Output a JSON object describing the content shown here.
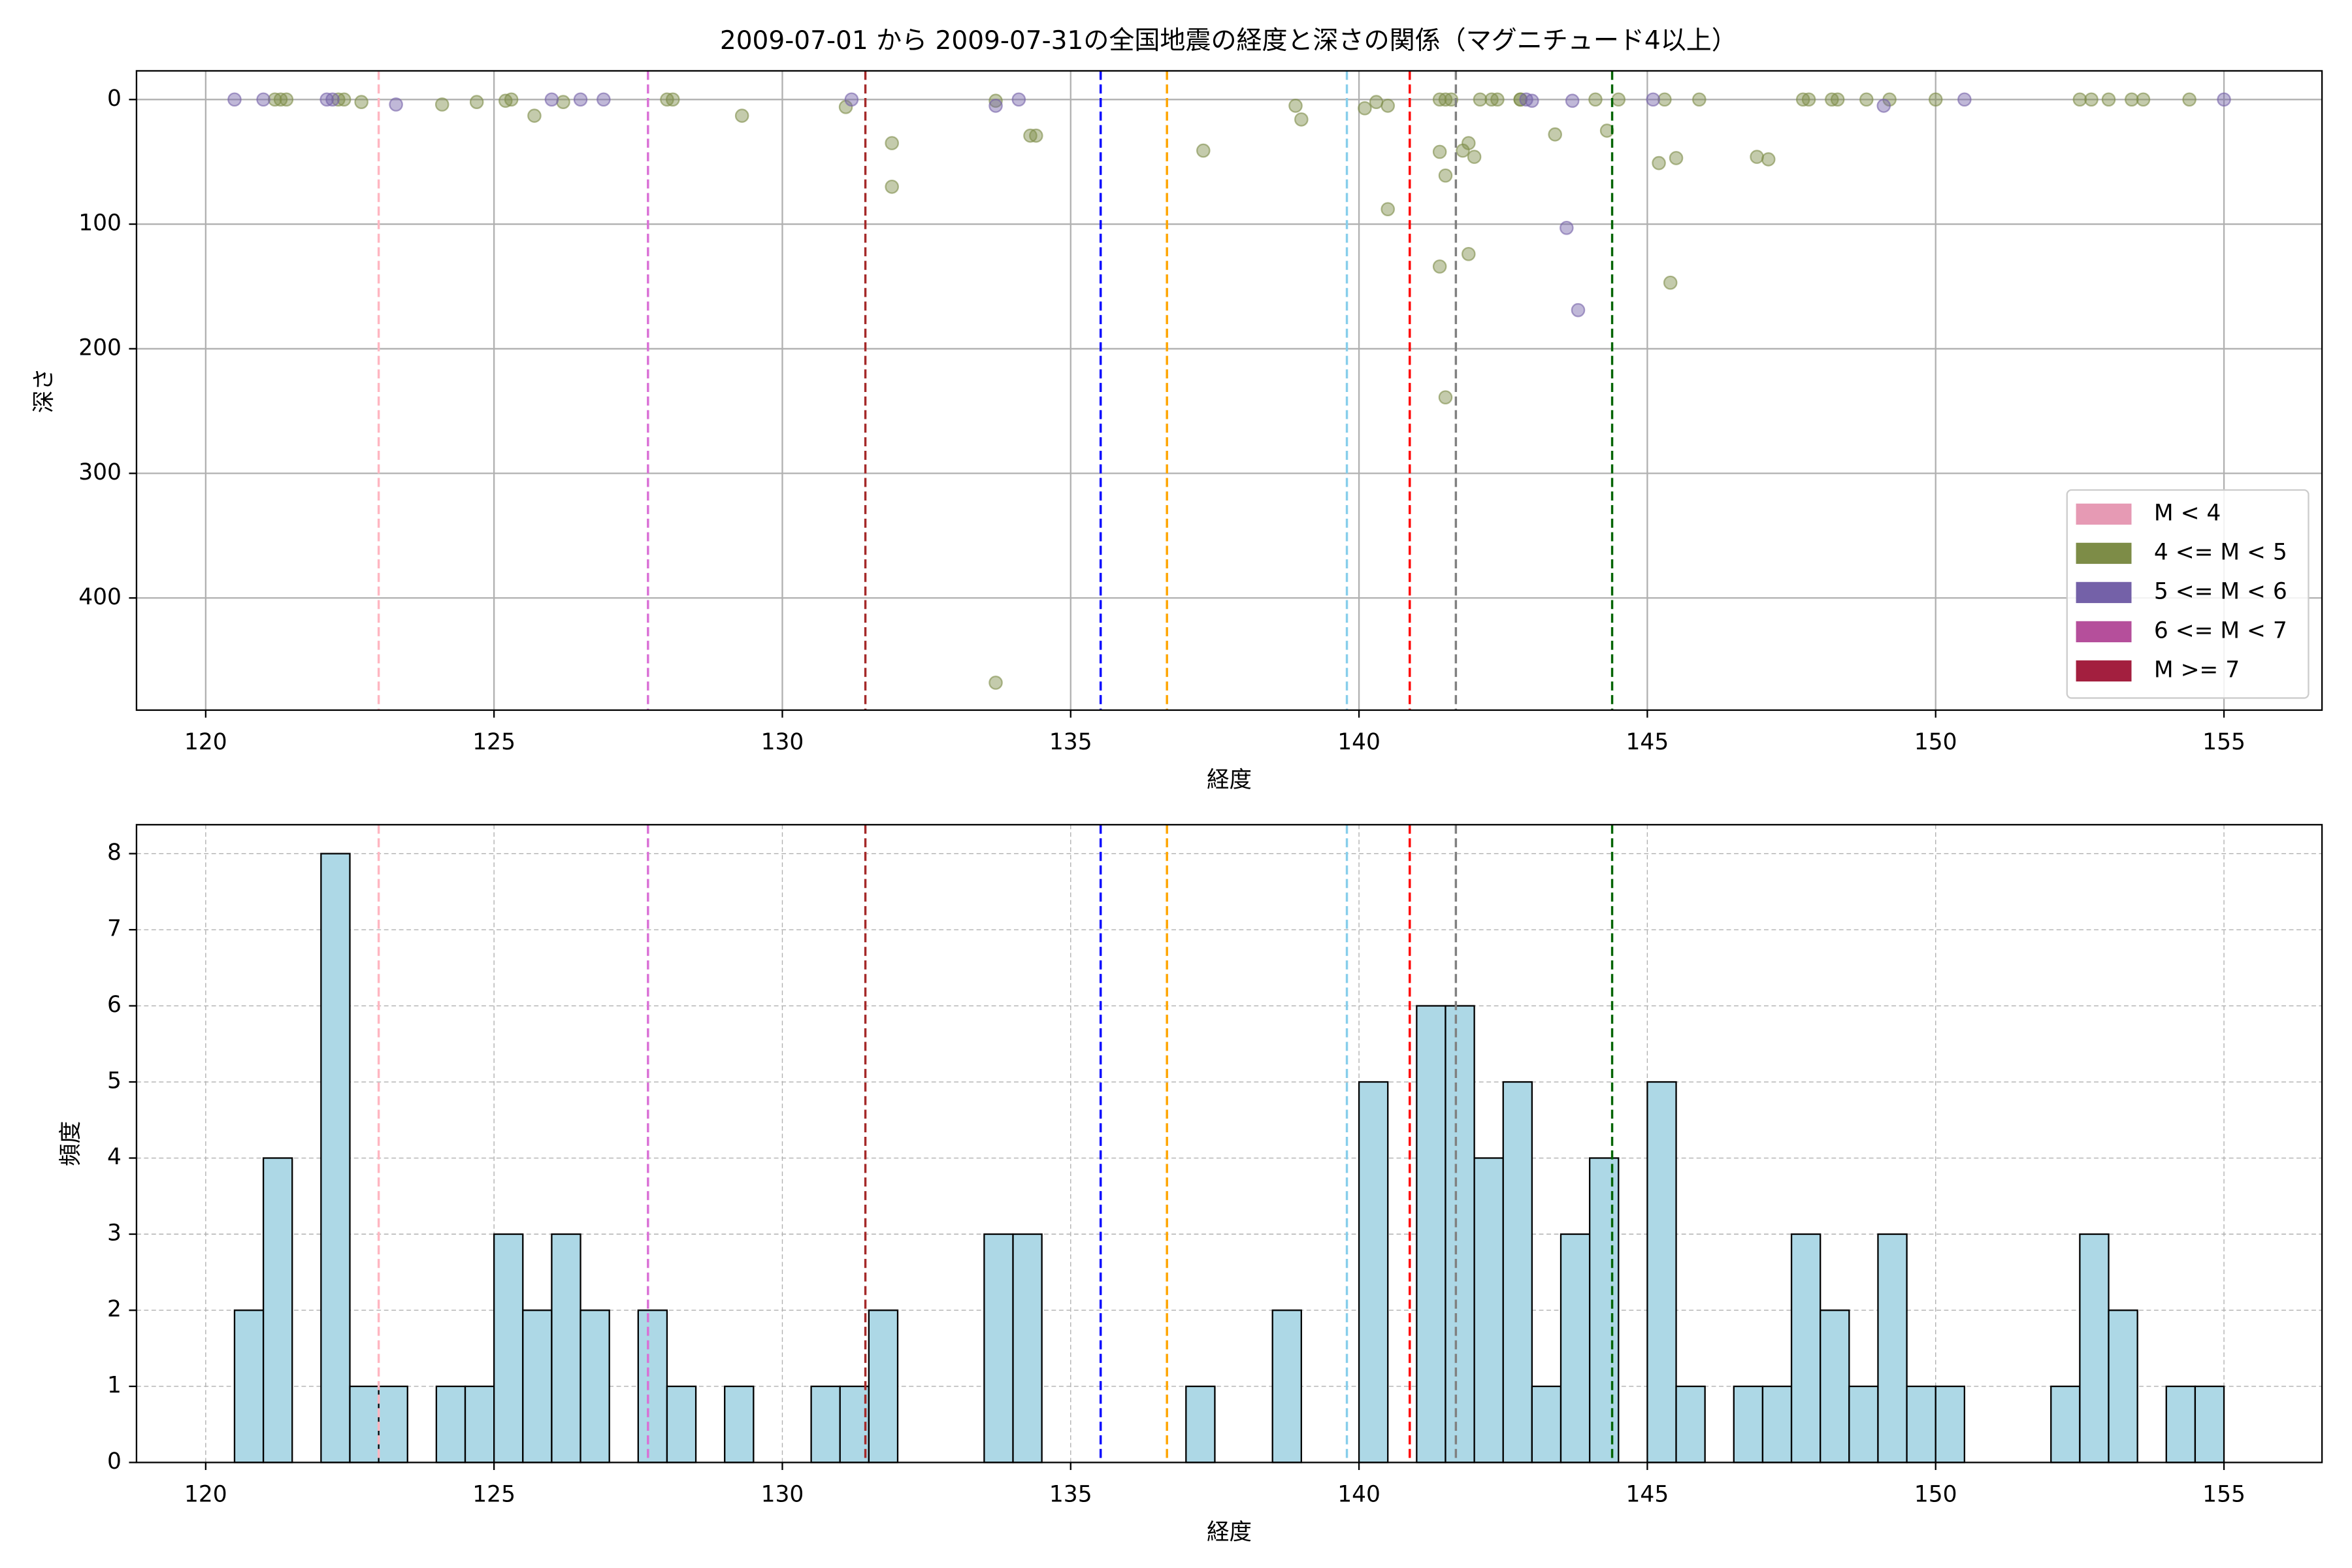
{
  "chart_data": [
    {
      "type": "scatter",
      "title": "2009-07-01 から 2009-07-31の全国地震の経度と深さの関係（マグニチュード4以上）",
      "xlabel": "経度",
      "ylabel": "深さ",
      "xlim": [
        118.8,
        156.7
      ],
      "ylim": [
        490,
        -23
      ],
      "xticks": [
        120,
        125,
        130,
        135,
        140,
        145,
        150,
        155
      ],
      "yticks": [
        0,
        100,
        200,
        300,
        400
      ],
      "grid": true,
      "grid_style": "solid",
      "legend": "lower right",
      "vlines": [
        {
          "x": 123.0,
          "color": "#ffb6c1"
        },
        {
          "x": 127.67,
          "color": "#da70d6"
        },
        {
          "x": 131.44,
          "color": "#a52a2a"
        },
        {
          "x": 135.52,
          "color": "#0000ff"
        },
        {
          "x": 136.67,
          "color": "#ffa500"
        },
        {
          "x": 139.79,
          "color": "#87ceeb"
        },
        {
          "x": 140.88,
          "color": "#ff0000"
        },
        {
          "x": 141.68,
          "color": "#808080"
        },
        {
          "x": 144.39,
          "color": "#006400"
        }
      ],
      "series": [
        {
          "name": "M < 4",
          "color": "#e69ab4",
          "x": [],
          "values": []
        },
        {
          "name": "4 <= M < 5",
          "color": "#7d8c47",
          "x": [
            121.2,
            121.3,
            121.4,
            122.3,
            122.4,
            122.7,
            124.1,
            124.7,
            125.2,
            125.3,
            125.7,
            126.2,
            128.0,
            128.1,
            129.3,
            131.1,
            131.9,
            131.9,
            133.7,
            134.3,
            134.4,
            137.3,
            138.9,
            139.0,
            140.1,
            140.3,
            140.5,
            140.5,
            141.4,
            141.5,
            141.6,
            141.4,
            141.5,
            141.4,
            141.5,
            141.8,
            141.9,
            142.0,
            141.9,
            142.1,
            142.3,
            142.4,
            142.8,
            142.8,
            143.4,
            144.1,
            144.3,
            144.5,
            145.2,
            145.3,
            145.5,
            145.4,
            145.9,
            146.9,
            147.1,
            147.7,
            147.8,
            148.2,
            148.3,
            148.8,
            149.2,
            150.0,
            152.5,
            152.7,
            153.0,
            153.4,
            153.6,
            154.4,
            133.7
          ],
          "values": [
            0,
            0,
            0,
            0,
            0,
            2,
            4,
            2,
            1,
            0,
            13,
            2,
            0,
            0,
            13,
            6,
            35,
            70,
            1,
            29,
            29,
            41,
            5,
            16,
            7,
            2,
            5,
            88,
            0,
            0,
            0,
            42,
            61,
            134,
            239,
            41,
            35,
            46,
            124,
            0,
            0,
            0,
            0,
            0,
            28,
            0,
            25,
            0,
            51,
            0,
            47,
            147,
            0,
            46,
            48,
            0,
            0,
            0,
            0,
            0,
            0,
            0,
            0,
            0,
            0,
            0,
            0,
            0,
            468
          ]
        },
        {
          "name": "5 <= M < 6",
          "color": "#7461a8",
          "x": [
            120.5,
            121.0,
            122.1,
            122.2,
            123.3,
            126.0,
            126.5,
            126.9,
            131.2,
            133.7,
            134.1,
            142.9,
            143.0,
            143.7,
            143.8,
            143.6,
            145.1,
            149.1,
            150.5,
            155.0
          ],
          "values": [
            0,
            0,
            0,
            0,
            4,
            0,
            0,
            0,
            0,
            5,
            0,
            0,
            1,
            1,
            169,
            103,
            0,
            5,
            0,
            0
          ]
        },
        {
          "name": "6 <= M < 7",
          "color": "#b54f9b",
          "x": [],
          "values": []
        },
        {
          "name": "M >= 7",
          "color": "#a31f3f",
          "x": [],
          "values": []
        }
      ]
    },
    {
      "type": "histogram",
      "xlabel": "経度",
      "ylabel": "頻度",
      "xlim": [
        118.8,
        156.7
      ],
      "ylim": [
        0,
        8.38
      ],
      "xticks": [
        120,
        125,
        130,
        135,
        140,
        145,
        150,
        155
      ],
      "yticks": [
        0,
        1,
        2,
        3,
        4,
        5,
        6,
        7,
        8
      ],
      "grid": true,
      "grid_style": "dashed",
      "color": "#add8e6",
      "vlines": [
        {
          "x": 123.0,
          "color": "#ffb6c1"
        },
        {
          "x": 127.67,
          "color": "#da70d6"
        },
        {
          "x": 131.44,
          "color": "#a52a2a"
        },
        {
          "x": 135.52,
          "color": "#0000ff"
        },
        {
          "x": 136.67,
          "color": "#ffa500"
        },
        {
          "x": 139.79,
          "color": "#87ceeb"
        },
        {
          "x": 140.88,
          "color": "#ff0000"
        },
        {
          "x": 141.68,
          "color": "#808080"
        },
        {
          "x": 144.39,
          "color": "#006400"
        }
      ],
      "bins": [
        120.5,
        121.0,
        121.5,
        122.0,
        122.5,
        123.0,
        123.5,
        124.0,
        124.5,
        125.0,
        125.5,
        126.0,
        126.5,
        127.0,
        127.5,
        128.0,
        128.5,
        129.0,
        129.5,
        130.0,
        130.5,
        131.0,
        131.5,
        132.0,
        132.5,
        133.0,
        133.5,
        134.0,
        134.5,
        135.0,
        135.5,
        136.0,
        136.5,
        137.0,
        137.5,
        138.0,
        138.5,
        139.0,
        139.5,
        140.0,
        140.5,
        141.0,
        141.5,
        142.0,
        142.5,
        143.0,
        143.5,
        144.0,
        144.5,
        145.0,
        145.5,
        146.0,
        146.5,
        147.0,
        147.5,
        148.0,
        148.5,
        149.0,
        149.5,
        150.0,
        150.5,
        151.0,
        151.5,
        152.0,
        152.5,
        153.0,
        153.5,
        154.0,
        154.5,
        155.0
      ],
      "values": [
        2,
        4,
        0,
        8,
        1,
        1,
        0,
        1,
        1,
        3,
        2,
        3,
        2,
        0,
        2,
        1,
        0,
        1,
        0,
        0,
        1,
        1,
        2,
        0,
        0,
        0,
        3,
        3,
        0,
        0,
        0,
        0,
        0,
        1,
        0,
        0,
        2,
        0,
        0,
        5,
        0,
        6,
        6,
        4,
        5,
        1,
        3,
        4,
        0,
        5,
        1,
        0,
        1,
        1,
        3,
        2,
        1,
        3,
        1,
        1,
        0,
        0,
        0,
        1,
        3,
        2,
        0,
        1,
        1
      ]
    }
  ]
}
